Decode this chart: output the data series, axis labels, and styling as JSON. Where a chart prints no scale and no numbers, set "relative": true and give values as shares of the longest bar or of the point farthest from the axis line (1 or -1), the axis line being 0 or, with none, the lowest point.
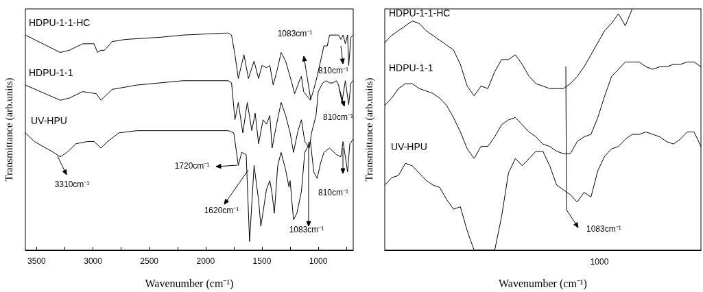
{
  "chart_data": [
    {
      "type": "line",
      "xlabel": "Wavenumber (cm⁻¹)",
      "ylabel": "Transmittance (arb.units)",
      "relative": true,
      "xlim": [
        3600,
        690
      ],
      "xticks": [
        3500,
        {
          "value": 3250,
          "label": null
        },
        3000,
        {
          "value": 2750,
          "label": null
        },
        2500,
        {
          "value": 2250,
          "label": null
        },
        2000,
        {
          "value": 1750,
          "label": null
        },
        1500,
        {
          "value": 1250,
          "label": null
        },
        1000,
        {
          "value": 750,
          "label": null
        }
      ],
      "series": [
        {
          "name": "HDPU-1-1-HC",
          "color": "#000000",
          "x": [
            3600,
            3290,
            3210,
            3090,
            2990,
            2960,
            2930,
            2900,
            2880,
            2830,
            2710,
            2400,
            2200,
            1800,
            1770,
            1740,
            1710,
            1660,
            1620,
            1570,
            1530,
            1500,
            1460,
            1430,
            1400,
            1360,
            1330,
            1290,
            1240,
            1210,
            1160,
            1150,
            1130,
            1070,
            1040,
            1010,
            980,
            950,
            920,
            900,
            840,
            820,
            800,
            780,
            760,
            740,
            730,
            710,
            690
          ],
          "values": [
            0.99,
            0.91,
            0.92,
            0.95,
            0.95,
            0.91,
            0.92,
            0.92,
            0.93,
            0.96,
            0.97,
            0.98,
            0.99,
            1,
            0.99,
            0.9,
            0.79,
            0.9,
            0.79,
            0.87,
            0.79,
            0.85,
            0.84,
            0.85,
            0.76,
            0.84,
            0.91,
            0.87,
            0.78,
            0.72,
            0.79,
            0.8,
            0.73,
            0.69,
            0.74,
            0.8,
            0.87,
            0.94,
            0.94,
            0.99,
            0.99,
            0.99,
            0.97,
            0.99,
            0.95,
            0.99,
            0.85,
            0.98,
            0.99
          ]
        },
        {
          "name": "HDPU-1-1",
          "color": "#000000",
          "x": [
            3600,
            3290,
            3210,
            3090,
            2970,
            2930,
            2890,
            2830,
            2610,
            2200,
            1800,
            1770,
            1740,
            1710,
            1670,
            1630,
            1590,
            1560,
            1530,
            1490,
            1460,
            1430,
            1410,
            1370,
            1330,
            1290,
            1250,
            1220,
            1180,
            1150,
            1120,
            1080,
            1060,
            1020,
            1000,
            960,
            930,
            900,
            870,
            840,
            820,
            790,
            760,
            730,
            710,
            690
          ],
          "values": [
            0.76,
            0.69,
            0.7,
            0.73,
            0.72,
            0.69,
            0.71,
            0.74,
            0.76,
            0.78,
            0.78,
            0.77,
            0.6,
            0.68,
            0.54,
            0.68,
            0.55,
            0.63,
            0.49,
            0.6,
            0.58,
            0.62,
            0.47,
            0.58,
            0.68,
            0.62,
            0.54,
            0.45,
            0.55,
            0.6,
            0.5,
            0.47,
            0.54,
            0.62,
            0.73,
            0.77,
            0.78,
            0.77,
            0.77,
            0.78,
            0.76,
            0.68,
            0.78,
            0.67,
            0.77,
            0.78
          ]
        },
        {
          "name": "UV-HPU",
          "color": "#000000",
          "x": [
            3600,
            3520,
            3350,
            3290,
            3230,
            3150,
            3050,
            2990,
            2930,
            2870,
            2770,
            2610,
            1800,
            1750,
            1710,
            1680,
            1640,
            1610,
            1570,
            1530,
            1510,
            1480,
            1460,
            1430,
            1410,
            1390,
            1360,
            1330,
            1290,
            1260,
            1250,
            1220,
            1190,
            1150,
            1120,
            1070,
            1040,
            1010,
            980,
            950,
            900,
            840,
            800,
            780,
            740,
            720,
            690
          ],
          "values": [
            0.54,
            0.5,
            0.45,
            0.43,
            0.45,
            0.49,
            0.5,
            0.5,
            0.47,
            0.5,
            0.54,
            0.55,
            0.55,
            0.54,
            0.39,
            0.45,
            0.44,
            0.04,
            0.39,
            0.23,
            0.11,
            0.21,
            0.28,
            0.32,
            0.26,
            0.17,
            0.39,
            0.45,
            0.37,
            0.29,
            0.32,
            0.14,
            0.17,
            0.27,
            0.45,
            0.5,
            0.36,
            0.33,
            0.4,
            0.45,
            0.47,
            0.44,
            0.43,
            0.5,
            0.36,
            0.49,
            0.51
          ]
        }
      ],
      "annotations": [
        "3310cm⁻¹",
        "1720cm⁻¹",
        "1620cm⁻¹",
        "1083cm⁻¹",
        "810cm⁻¹",
        "1083cm⁻¹",
        "810cm⁻¹",
        "810cm⁻¹"
      ]
    },
    {
      "type": "line",
      "xlabel": "Wavenumber (cm⁻¹)",
      "ylabel": "Transmittance (arb.units)",
      "relative": true,
      "categories": [
        null,
        null,
        null,
        null,
        null,
        null,
        null,
        null,
        null,
        null,
        null,
        null,
        null,
        null,
        null,
        null,
        null,
        null,
        null,
        null,
        null,
        null,
        null,
        null,
        null,
        null,
        null,
        null,
        null,
        null,
        null,
        null,
        null,
        null,
        null,
        null,
        null,
        null,
        null,
        null,
        null,
        null,
        null,
        null,
        null,
        null,
        null
      ],
      "series": [
        {
          "name": "HDPU-1-1-HC",
          "color": "#000000",
          "values": [
            0.86,
            0.89,
            0.91,
            0.93,
            0.95,
            0.94,
            0.91,
            0.89,
            0.87,
            0.85,
            0.83,
            0.77,
            0.68,
            0.64,
            0.68,
            0.67,
            0.74,
            0.79,
            0.79,
            0.81,
            0.77,
            0.72,
            0.69,
            0.68,
            0.67,
            0.67,
            0.67,
            0.69,
            0.72,
            0.76,
            0.81,
            0.86,
            0.91,
            0.94,
            0.98,
            0.93,
            1,
            null,
            null,
            null,
            null,
            null,
            null,
            null,
            null,
            null,
            null
          ]
        },
        {
          "name": "HDPU-1-1",
          "color": "#000000",
          "values": [
            0.6,
            0.63,
            0.67,
            0.69,
            0.69,
            0.67,
            0.66,
            0.65,
            0.63,
            0.6,
            0.55,
            0.49,
            0.42,
            0.38,
            0.43,
            0.43,
            0.47,
            0.52,
            0.54,
            0.55,
            0.52,
            0.49,
            0.47,
            0.44,
            0.43,
            0.41,
            0.4,
            0.4,
            0.45,
            0.47,
            0.48,
            0.55,
            0.64,
            0.72,
            0.75,
            0.78,
            0.78,
            0.78,
            0.76,
            0.75,
            0.76,
            0.76,
            0.77,
            0.77,
            0.78,
            0.78,
            0.76
          ]
        },
        {
          "name": "UV-HPU",
          "color": "#000000",
          "values": [
            0.27,
            0.3,
            0.31,
            0.36,
            0.35,
            0.32,
            0.29,
            0.27,
            0.26,
            0.21,
            0.17,
            0.18,
            0.08,
            0,
            0,
            0,
            0,
            0.14,
            0.32,
            0.38,
            0.35,
            0.38,
            0.41,
            0.41,
            0.35,
            0.27,
            0.25,
            0.23,
            0.2,
            0.24,
            0.22,
            0.33,
            0.39,
            0.42,
            0.43,
            0.46,
            0.48,
            0.48,
            0.49,
            0.48,
            0.47,
            0.45,
            0.44,
            0.46,
            0.49,
            0.49,
            0.43
          ]
        }
      ],
      "annotations": [
        "1083cm⁻¹",
        "1000"
      ]
    }
  ]
}
